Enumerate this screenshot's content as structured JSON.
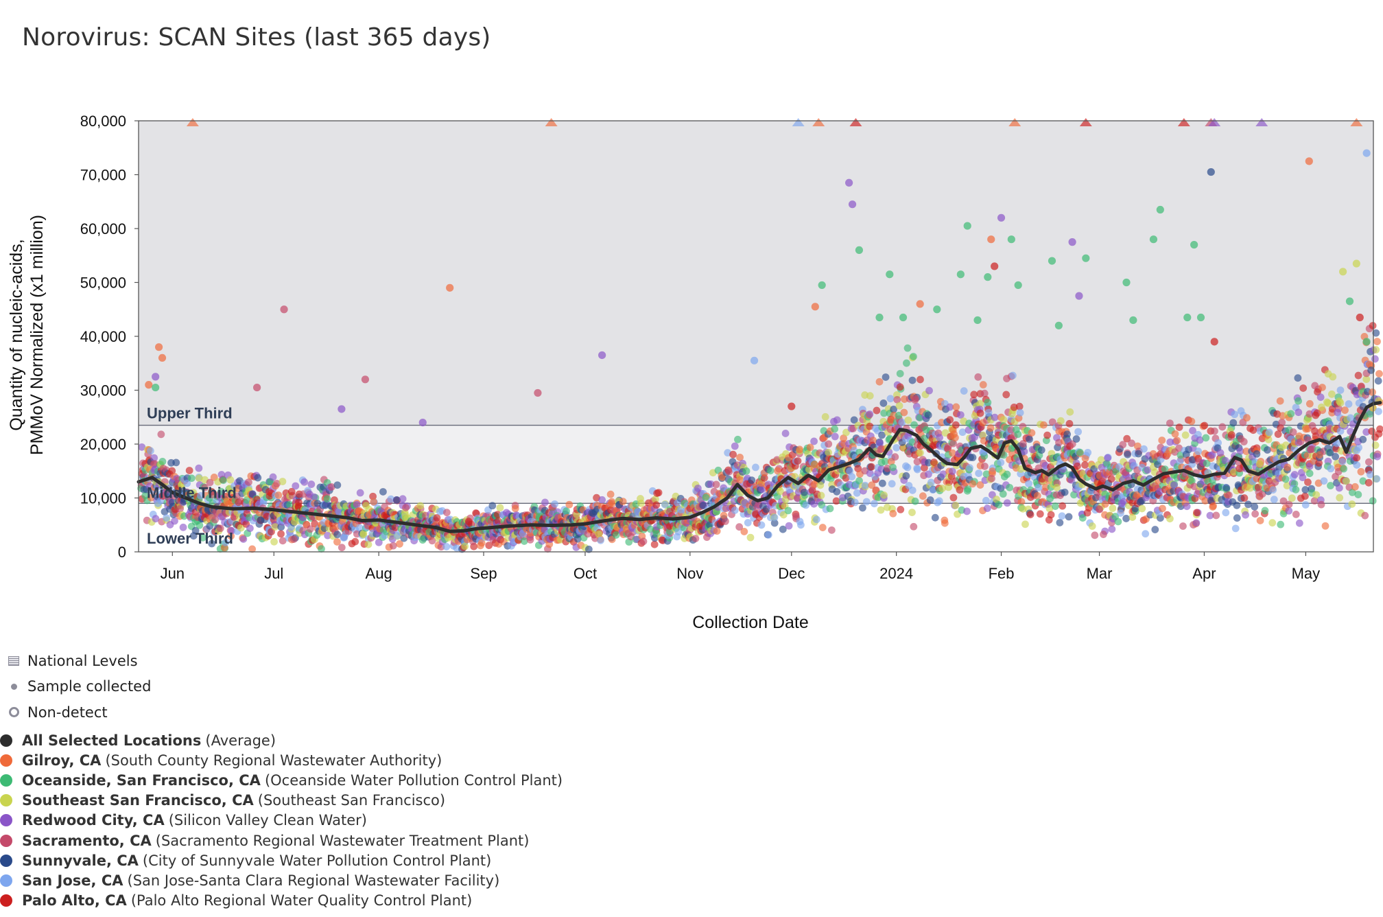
{
  "title": "Norovirus: SCAN Sites (last 365 days)",
  "chart_data": {
    "type": "scatter",
    "title": "Norovirus: SCAN Sites (last 365 days)",
    "xlabel": "Collection Date",
    "ylabel_line1": "Quantity of nucleic-acids,",
    "ylabel_line2": "PMMoV Normalized (x1 million)",
    "ylim": [
      0,
      80000
    ],
    "yticks": [
      0,
      10000,
      20000,
      30000,
      40000,
      50000,
      60000,
      70000,
      80000
    ],
    "ytick_labels": [
      "0",
      "10,000",
      "20,000",
      "30,000",
      "40,000",
      "50,000",
      "60,000",
      "70,000",
      "80,000"
    ],
    "x_start_day": -10,
    "x_end_day": 355,
    "xticks": [
      {
        "label": "Jun",
        "day": 0
      },
      {
        "label": "Jul",
        "day": 30
      },
      {
        "label": "Aug",
        "day": 61
      },
      {
        "label": "Sep",
        "day": 92
      },
      {
        "label": "Oct",
        "day": 122
      },
      {
        "label": "Nov",
        "day": 153
      },
      {
        "label": "Dec",
        "day": 183
      },
      {
        "label": "2024",
        "day": 214
      },
      {
        "label": "Feb",
        "day": 245
      },
      {
        "label": "Mar",
        "day": 274
      },
      {
        "label": "Apr",
        "day": 305
      },
      {
        "label": "May",
        "day": 335
      }
    ],
    "national_levels": [
      {
        "name": "Lower Third",
        "from": 0,
        "to": 9000
      },
      {
        "name": "Middle Third",
        "from": 9000,
        "to": 23500
      },
      {
        "name": "Upper Third",
        "from": 23500,
        "to": 80000
      }
    ],
    "average_series": {
      "name": "All Selected Locations (Average)",
      "points": [
        [
          -10,
          13000
        ],
        [
          -6,
          13800
        ],
        [
          -3,
          12500
        ],
        [
          0,
          11000
        ],
        [
          4,
          10000
        ],
        [
          8,
          9000
        ],
        [
          12,
          8300
        ],
        [
          18,
          8000
        ],
        [
          24,
          8100
        ],
        [
          30,
          7800
        ],
        [
          36,
          7400
        ],
        [
          42,
          7000
        ],
        [
          48,
          6600
        ],
        [
          52,
          6300
        ],
        [
          56,
          5800
        ],
        [
          61,
          5900
        ],
        [
          66,
          5500
        ],
        [
          72,
          5000
        ],
        [
          78,
          4500
        ],
        [
          82,
          3800
        ],
        [
          86,
          3900
        ],
        [
          90,
          4300
        ],
        [
          96,
          4600
        ],
        [
          100,
          4800
        ],
        [
          106,
          5000
        ],
        [
          112,
          4900
        ],
        [
          118,
          5000
        ],
        [
          122,
          5200
        ],
        [
          128,
          5800
        ],
        [
          133,
          6200
        ],
        [
          138,
          6000
        ],
        [
          143,
          6300
        ],
        [
          148,
          6100
        ],
        [
          153,
          6400
        ],
        [
          157,
          7400
        ],
        [
          160,
          8300
        ],
        [
          164,
          10000
        ],
        [
          167,
          12500
        ],
        [
          170,
          10500
        ],
        [
          173,
          9500
        ],
        [
          176,
          10000
        ],
        [
          179,
          12300
        ],
        [
          182,
          13800
        ],
        [
          185,
          12700
        ],
        [
          188,
          14200
        ],
        [
          191,
          13200
        ],
        [
          194,
          15200
        ],
        [
          197,
          15800
        ],
        [
          200,
          16400
        ],
        [
          203,
          17200
        ],
        [
          206,
          19200
        ],
        [
          208,
          18000
        ],
        [
          210,
          17700
        ],
        [
          213,
          20800
        ],
        [
          215,
          22700
        ],
        [
          217,
          22500
        ],
        [
          220,
          21600
        ],
        [
          222,
          20000
        ],
        [
          224,
          19000
        ],
        [
          227,
          17300
        ],
        [
          229,
          16400
        ],
        [
          232,
          16200
        ],
        [
          234,
          17500
        ],
        [
          236,
          19200
        ],
        [
          239,
          19600
        ],
        [
          241,
          18800
        ],
        [
          244,
          17400
        ],
        [
          246,
          20200
        ],
        [
          248,
          20600
        ],
        [
          250,
          19000
        ],
        [
          252,
          15500
        ],
        [
          255,
          14700
        ],
        [
          257,
          15100
        ],
        [
          259,
          14300
        ],
        [
          262,
          15800
        ],
        [
          264,
          16300
        ],
        [
          266,
          15600
        ],
        [
          268,
          13500
        ],
        [
          270,
          12600
        ],
        [
          273,
          11700
        ],
        [
          275,
          12200
        ],
        [
          278,
          11500
        ],
        [
          281,
          12700
        ],
        [
          284,
          13200
        ],
        [
          287,
          12400
        ],
        [
          290,
          13500
        ],
        [
          293,
          14500
        ],
        [
          296,
          14800
        ],
        [
          299,
          15100
        ],
        [
          302,
          14300
        ],
        [
          305,
          13900
        ],
        [
          308,
          14400
        ],
        [
          311,
          14600
        ],
        [
          314,
          17500
        ],
        [
          316,
          17000
        ],
        [
          318,
          15000
        ],
        [
          321,
          14400
        ],
        [
          324,
          15600
        ],
        [
          327,
          16700
        ],
        [
          330,
          17200
        ],
        [
          333,
          18900
        ],
        [
          336,
          20200
        ],
        [
          339,
          20800
        ],
        [
          342,
          20200
        ],
        [
          345,
          21400
        ],
        [
          347,
          18500
        ],
        [
          349,
          21600
        ],
        [
          351,
          24500
        ],
        [
          353,
          26800
        ],
        [
          355,
          27500
        ],
        [
          357,
          27700
        ]
      ]
    },
    "above_range_markers": [
      {
        "day": 6,
        "site": "Gilroy, CA"
      },
      {
        "day": 112,
        "site": "Gilroy, CA"
      },
      {
        "day": 185,
        "site": "San Jose, CA"
      },
      {
        "day": 191,
        "site": "Gilroy, CA"
      },
      {
        "day": 202,
        "site": "Palo Alto, CA"
      },
      {
        "day": 249,
        "site": "Gilroy, CA"
      },
      {
        "day": 270,
        "site": "Palo Alto, CA"
      },
      {
        "day": 299,
        "site": "Palo Alto, CA"
      },
      {
        "day": 307,
        "site": "Sacramento, CA"
      },
      {
        "day": 308,
        "site": "Redwood City, CA"
      },
      {
        "day": 322,
        "site": "Redwood City, CA"
      },
      {
        "day": 350,
        "site": "Gilroy, CA"
      }
    ],
    "outliers": [
      {
        "day": -7,
        "value": 31000,
        "site": "Gilroy, CA"
      },
      {
        "day": -4,
        "value": 38000,
        "site": "Gilroy, CA"
      },
      {
        "day": -3,
        "value": 36000,
        "site": "Gilroy, CA"
      },
      {
        "day": -5,
        "value": 32500,
        "site": "Redwood City, CA"
      },
      {
        "day": -5,
        "value": 30500,
        "site": "Oceanside, San Francisco, CA"
      },
      {
        "day": 25,
        "value": 30500,
        "site": "Sacramento, CA"
      },
      {
        "day": 33,
        "value": 45000,
        "site": "Sacramento, CA"
      },
      {
        "day": 50,
        "value": 26500,
        "site": "Redwood City, CA"
      },
      {
        "day": 57,
        "value": 32000,
        "site": "Sacramento, CA"
      },
      {
        "day": 74,
        "value": 24000,
        "site": "Redwood City, CA"
      },
      {
        "day": 82,
        "value": 49000,
        "site": "Gilroy, CA"
      },
      {
        "day": 108,
        "value": 29500,
        "site": "Sacramento, CA"
      },
      {
        "day": 127,
        "value": 36500,
        "site": "Redwood City, CA"
      },
      {
        "day": 172,
        "value": 35500,
        "site": "San Jose, CA"
      },
      {
        "day": 183,
        "value": 27000,
        "site": "Palo Alto, CA"
      },
      {
        "day": 190,
        "value": 45500,
        "site": "Gilroy, CA"
      },
      {
        "day": 192,
        "value": 49500,
        "site": "Oceanside, San Francisco, CA"
      },
      {
        "day": 200,
        "value": 68500,
        "site": "Redwood City, CA"
      },
      {
        "day": 201,
        "value": 64500,
        "site": "Redwood City, CA"
      },
      {
        "day": 203,
        "value": 56000,
        "site": "Oceanside, San Francisco, CA"
      },
      {
        "day": 209,
        "value": 43500,
        "site": "Oceanside, San Francisco, CA"
      },
      {
        "day": 212,
        "value": 51500,
        "site": "Oceanside, San Francisco, CA"
      },
      {
        "day": 216,
        "value": 43500,
        "site": "Oceanside, San Francisco, CA"
      },
      {
        "day": 221,
        "value": 46000,
        "site": "Gilroy, CA"
      },
      {
        "day": 226,
        "value": 45000,
        "site": "Oceanside, San Francisco, CA"
      },
      {
        "day": 233,
        "value": 51500,
        "site": "Oceanside, San Francisco, CA"
      },
      {
        "day": 235,
        "value": 60500,
        "site": "Oceanside, San Francisco, CA"
      },
      {
        "day": 238,
        "value": 43000,
        "site": "Oceanside, San Francisco, CA"
      },
      {
        "day": 241,
        "value": 51000,
        "site": "Oceanside, San Francisco, CA"
      },
      {
        "day": 242,
        "value": 58000,
        "site": "Gilroy, CA"
      },
      {
        "day": 243,
        "value": 53000,
        "site": "Palo Alto, CA"
      },
      {
        "day": 245,
        "value": 62000,
        "site": "Redwood City, CA"
      },
      {
        "day": 248,
        "value": 58000,
        "site": "Oceanside, San Francisco, CA"
      },
      {
        "day": 250,
        "value": 49500,
        "site": "Oceanside, San Francisco, CA"
      },
      {
        "day": 260,
        "value": 54000,
        "site": "Oceanside, San Francisco, CA"
      },
      {
        "day": 262,
        "value": 42000,
        "site": "Oceanside, San Francisco, CA"
      },
      {
        "day": 266,
        "value": 57500,
        "site": "Redwood City, CA"
      },
      {
        "day": 268,
        "value": 47500,
        "site": "Redwood City, CA"
      },
      {
        "day": 270,
        "value": 54500,
        "site": "Oceanside, San Francisco, CA"
      },
      {
        "day": 282,
        "value": 50000,
        "site": "Oceanside, San Francisco, CA"
      },
      {
        "day": 284,
        "value": 43000,
        "site": "Oceanside, San Francisco, CA"
      },
      {
        "day": 290,
        "value": 58000,
        "site": "Oceanside, San Francisco, CA"
      },
      {
        "day": 292,
        "value": 63500,
        "site": "Oceanside, San Francisco, CA"
      },
      {
        "day": 300,
        "value": 43500,
        "site": "Oceanside, San Francisco, CA"
      },
      {
        "day": 302,
        "value": 57000,
        "site": "Oceanside, San Francisco, CA"
      },
      {
        "day": 304,
        "value": 43500,
        "site": "Oceanside, San Francisco, CA"
      },
      {
        "day": 307,
        "value": 70500,
        "site": "Sunnyvale, CA"
      },
      {
        "day": 308,
        "value": 39000,
        "site": "Palo Alto, CA"
      },
      {
        "day": 336,
        "value": 72500,
        "site": "Gilroy, CA"
      },
      {
        "day": 346,
        "value": 52000,
        "site": "Southeast San Francisco, CA"
      },
      {
        "day": 348,
        "value": 46500,
        "site": "Oceanside, San Francisco, CA"
      },
      {
        "day": 350,
        "value": 53500,
        "site": "Southeast San Francisco, CA"
      },
      {
        "day": 351,
        "value": 43500,
        "site": "Palo Alto, CA"
      },
      {
        "day": 353,
        "value": 74000,
        "site": "San Jose, CA"
      },
      {
        "day": 353,
        "value": 39000,
        "site": "Oceanside, San Francisco, CA"
      }
    ],
    "scatter_envelope": {
      "note": "Bulk of per-site samples cluster around the average line within roughly ±40% (approximate visual density)",
      "samples_per_day": 6
    }
  },
  "legend": {
    "national_levels": "National Levels",
    "sample_collected": "Sample collected",
    "non_detect": "Non-detect"
  },
  "sites": [
    {
      "name": "All Selected Locations",
      "detail": "(Average)",
      "color": "#2d2d2d"
    },
    {
      "name": "Gilroy, CA",
      "detail": "(South County Regional Wastewater Authority)",
      "color": "#ef6a3a"
    },
    {
      "name": "Oceanside, San Francisco, CA",
      "detail": "(Oceanside Water Pollution Control Plant)",
      "color": "#3dba74"
    },
    {
      "name": "Southeast San Francisco, CA",
      "detail": "(Southeast San Francisco)",
      "color": "#c9d44f"
    },
    {
      "name": "Redwood City, CA",
      "detail": "(Silicon Valley Clean Water)",
      "color": "#8a55c8"
    },
    {
      "name": "Sacramento, CA",
      "detail": "(Sacramento Regional Wastewater Treatment Plant)",
      "color": "#c44a6a"
    },
    {
      "name": "Sunnyvale, CA",
      "detail": "(City of Sunnyvale Water Pollution Control Plant)",
      "color": "#2a4a8a"
    },
    {
      "name": "San Jose, CA",
      "detail": "(San Jose-Santa Clara Regional Wastewater Facility)",
      "color": "#7ea6ee"
    },
    {
      "name": "Palo Alto, CA",
      "detail": "(Palo Alto Regional Water Quality Control Plant)",
      "color": "#cc1f1f"
    }
  ]
}
